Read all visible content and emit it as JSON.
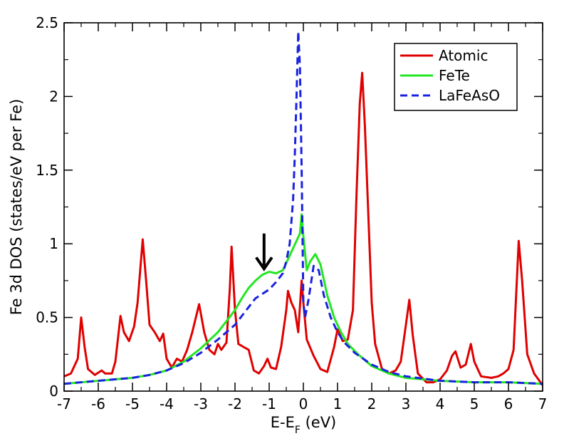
{
  "chart_data": {
    "type": "line",
    "title": "",
    "xlabel": "E-E",
    "xlabel_sub": "F",
    "xlabel_unit": " (eV)",
    "ylabel": "Fe 3d DOS (states/eV per Fe)",
    "xlim": [
      -7,
      7
    ],
    "ylim": [
      0,
      2.5
    ],
    "xticks": [
      -7,
      -6,
      -5,
      -4,
      -3,
      -2,
      -1,
      0,
      1,
      2,
      3,
      4,
      5,
      6,
      7
    ],
    "xtick_labels": [
      "-7",
      "-6",
      "-5",
      "-4",
      "-3",
      "-2",
      "-1",
      "0",
      "1",
      "2",
      "3",
      "4",
      "5",
      "6",
      "7"
    ],
    "yticks": [
      0,
      0.5,
      1,
      1.5,
      2,
      2.5
    ],
    "ytick_labels": [
      "0",
      "0.5",
      "1",
      "1.5",
      "2",
      "2.5"
    ],
    "grid": false,
    "legend_position": "top-right",
    "series": [
      {
        "name": "Atomic",
        "color": "#e00000",
        "dash": "solid",
        "points": [
          [
            -7.0,
            0.1
          ],
          [
            -6.8,
            0.12
          ],
          [
            -6.6,
            0.22
          ],
          [
            -6.5,
            0.5
          ],
          [
            -6.4,
            0.3
          ],
          [
            -6.3,
            0.15
          ],
          [
            -6.1,
            0.11
          ],
          [
            -5.9,
            0.14
          ],
          [
            -5.8,
            0.12
          ],
          [
            -5.6,
            0.12
          ],
          [
            -5.5,
            0.2
          ],
          [
            -5.35,
            0.51
          ],
          [
            -5.25,
            0.4
          ],
          [
            -5.1,
            0.34
          ],
          [
            -4.95,
            0.44
          ],
          [
            -4.85,
            0.6
          ],
          [
            -4.7,
            1.03
          ],
          [
            -4.6,
            0.75
          ],
          [
            -4.5,
            0.45
          ],
          [
            -4.35,
            0.4
          ],
          [
            -4.2,
            0.34
          ],
          [
            -4.1,
            0.39
          ],
          [
            -4.0,
            0.22
          ],
          [
            -3.85,
            0.16
          ],
          [
            -3.7,
            0.22
          ],
          [
            -3.55,
            0.2
          ],
          [
            -3.4,
            0.28
          ],
          [
            -3.25,
            0.4
          ],
          [
            -3.05,
            0.59
          ],
          [
            -2.9,
            0.4
          ],
          [
            -2.75,
            0.28
          ],
          [
            -2.6,
            0.25
          ],
          [
            -2.5,
            0.32
          ],
          [
            -2.4,
            0.28
          ],
          [
            -2.25,
            0.33
          ],
          [
            -2.15,
            0.7
          ],
          [
            -2.1,
            0.98
          ],
          [
            -2.0,
            0.55
          ],
          [
            -1.9,
            0.32
          ],
          [
            -1.75,
            0.3
          ],
          [
            -1.6,
            0.28
          ],
          [
            -1.45,
            0.14
          ],
          [
            -1.3,
            0.12
          ],
          [
            -1.15,
            0.17
          ],
          [
            -1.05,
            0.22
          ],
          [
            -0.95,
            0.16
          ],
          [
            -0.8,
            0.15
          ],
          [
            -0.65,
            0.3
          ],
          [
            -0.5,
            0.55
          ],
          [
            -0.45,
            0.68
          ],
          [
            -0.35,
            0.6
          ],
          [
            -0.25,
            0.55
          ],
          [
            -0.15,
            0.4
          ],
          [
            -0.05,
            0.75
          ],
          [
            0.0,
            0.6
          ],
          [
            0.1,
            0.35
          ],
          [
            0.3,
            0.24
          ],
          [
            0.5,
            0.15
          ],
          [
            0.7,
            0.13
          ],
          [
            0.9,
            0.3
          ],
          [
            1.0,
            0.42
          ],
          [
            1.15,
            0.34
          ],
          [
            1.3,
            0.35
          ],
          [
            1.45,
            0.55
          ],
          [
            1.55,
            1.3
          ],
          [
            1.65,
            1.95
          ],
          [
            1.72,
            2.16
          ],
          [
            1.8,
            1.8
          ],
          [
            1.9,
            1.2
          ],
          [
            2.0,
            0.6
          ],
          [
            2.1,
            0.32
          ],
          [
            2.3,
            0.15
          ],
          [
            2.5,
            0.12
          ],
          [
            2.7,
            0.14
          ],
          [
            2.85,
            0.2
          ],
          [
            3.0,
            0.45
          ],
          [
            3.1,
            0.62
          ],
          [
            3.2,
            0.38
          ],
          [
            3.35,
            0.12
          ],
          [
            3.6,
            0.06
          ],
          [
            3.8,
            0.06
          ],
          [
            4.0,
            0.08
          ],
          [
            4.2,
            0.14
          ],
          [
            4.35,
            0.24
          ],
          [
            4.45,
            0.27
          ],
          [
            4.6,
            0.16
          ],
          [
            4.75,
            0.18
          ],
          [
            4.9,
            0.32
          ],
          [
            5.0,
            0.2
          ],
          [
            5.2,
            0.1
          ],
          [
            5.5,
            0.09
          ],
          [
            5.7,
            0.1
          ],
          [
            5.85,
            0.12
          ],
          [
            6.0,
            0.15
          ],
          [
            6.15,
            0.28
          ],
          [
            6.3,
            1.02
          ],
          [
            6.4,
            0.75
          ],
          [
            6.55,
            0.25
          ],
          [
            6.75,
            0.12
          ],
          [
            7.0,
            0.04
          ]
        ]
      },
      {
        "name": "FeTe",
        "color": "#22e622",
        "dash": "solid",
        "points": [
          [
            -7.0,
            0.05
          ],
          [
            -6.0,
            0.07
          ],
          [
            -5.0,
            0.09
          ],
          [
            -4.5,
            0.11
          ],
          [
            -4.0,
            0.14
          ],
          [
            -3.5,
            0.2
          ],
          [
            -3.0,
            0.29
          ],
          [
            -2.5,
            0.4
          ],
          [
            -2.0,
            0.55
          ],
          [
            -1.8,
            0.63
          ],
          [
            -1.6,
            0.7
          ],
          [
            -1.4,
            0.75
          ],
          [
            -1.2,
            0.79
          ],
          [
            -1.0,
            0.81
          ],
          [
            -0.8,
            0.8
          ],
          [
            -0.6,
            0.82
          ],
          [
            -0.4,
            0.92
          ],
          [
            -0.2,
            1.02
          ],
          [
            -0.1,
            1.07
          ],
          [
            -0.05,
            1.2
          ],
          [
            0.0,
            1.05
          ],
          [
            0.1,
            0.82
          ],
          [
            0.2,
            0.88
          ],
          [
            0.35,
            0.93
          ],
          [
            0.5,
            0.86
          ],
          [
            0.7,
            0.65
          ],
          [
            0.9,
            0.5
          ],
          [
            1.1,
            0.4
          ],
          [
            1.3,
            0.32
          ],
          [
            1.6,
            0.25
          ],
          [
            2.0,
            0.17
          ],
          [
            2.5,
            0.12
          ],
          [
            3.0,
            0.09
          ],
          [
            4.0,
            0.07
          ],
          [
            5.0,
            0.06
          ],
          [
            6.0,
            0.06
          ],
          [
            7.0,
            0.05
          ]
        ]
      },
      {
        "name": "LaFeAsO",
        "color": "#1a22e0",
        "dash": "dashed",
        "points": [
          [
            -7.0,
            0.05
          ],
          [
            -6.0,
            0.07
          ],
          [
            -5.0,
            0.09
          ],
          [
            -4.5,
            0.11
          ],
          [
            -4.0,
            0.14
          ],
          [
            -3.5,
            0.19
          ],
          [
            -3.0,
            0.26
          ],
          [
            -2.5,
            0.35
          ],
          [
            -2.0,
            0.45
          ],
          [
            -1.8,
            0.51
          ],
          [
            -1.6,
            0.57
          ],
          [
            -1.4,
            0.63
          ],
          [
            -1.2,
            0.66
          ],
          [
            -1.0,
            0.69
          ],
          [
            -0.8,
            0.74
          ],
          [
            -0.6,
            0.8
          ],
          [
            -0.5,
            0.88
          ],
          [
            -0.4,
            1.0
          ],
          [
            -0.3,
            1.3
          ],
          [
            -0.25,
            1.6
          ],
          [
            -0.2,
            2.0
          ],
          [
            -0.15,
            2.44
          ],
          [
            -0.1,
            2.2
          ],
          [
            -0.05,
            1.5
          ],
          [
            0.0,
            0.6
          ],
          [
            0.05,
            0.5
          ],
          [
            0.15,
            0.62
          ],
          [
            0.3,
            0.85
          ],
          [
            0.45,
            0.82
          ],
          [
            0.6,
            0.65
          ],
          [
            0.8,
            0.5
          ],
          [
            1.0,
            0.4
          ],
          [
            1.2,
            0.33
          ],
          [
            1.5,
            0.26
          ],
          [
            2.0,
            0.18
          ],
          [
            2.5,
            0.13
          ],
          [
            3.0,
            0.1
          ],
          [
            4.0,
            0.07
          ],
          [
            5.0,
            0.06
          ],
          [
            6.0,
            0.06
          ],
          [
            7.0,
            0.05
          ]
        ]
      }
    ],
    "annotations": [
      {
        "type": "arrow",
        "direction": "down",
        "x": -1.15,
        "y_from": 1.07,
        "y_to": 0.83,
        "color": "#000000"
      }
    ]
  }
}
